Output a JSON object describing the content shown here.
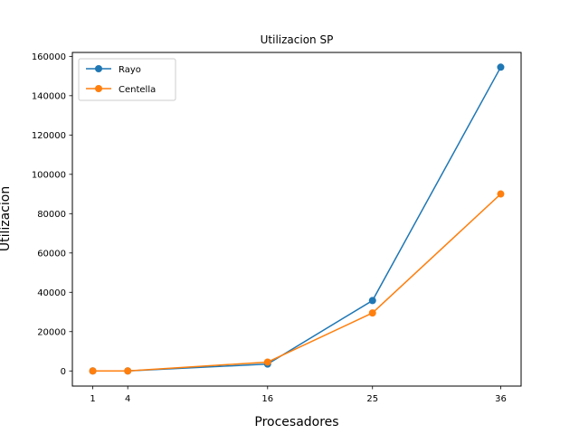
{
  "chart_data": {
    "type": "line",
    "title": "Utilizacion SP",
    "xlabel": "Procesadores",
    "ylabel": "Utilizacion",
    "x": [
      1,
      4,
      16,
      25,
      36
    ],
    "xticks": [
      1,
      4,
      16,
      25,
      36
    ],
    "xlim": [
      -0.75,
      37.75
    ],
    "yticks": [
      0,
      20000,
      40000,
      60000,
      80000,
      100000,
      120000,
      140000,
      160000
    ],
    "ylim": [
      -7700,
      162000
    ],
    "grid": false,
    "legend_position": "upper-left",
    "series": [
      {
        "name": "Rayo",
        "color": "#1f77b4",
        "values": [
          0,
          0,
          3500,
          35800,
          154500
        ]
      },
      {
        "name": "Centella",
        "color": "#ff7f0e",
        "values": [
          0,
          0,
          4500,
          29500,
          90000
        ]
      }
    ]
  }
}
